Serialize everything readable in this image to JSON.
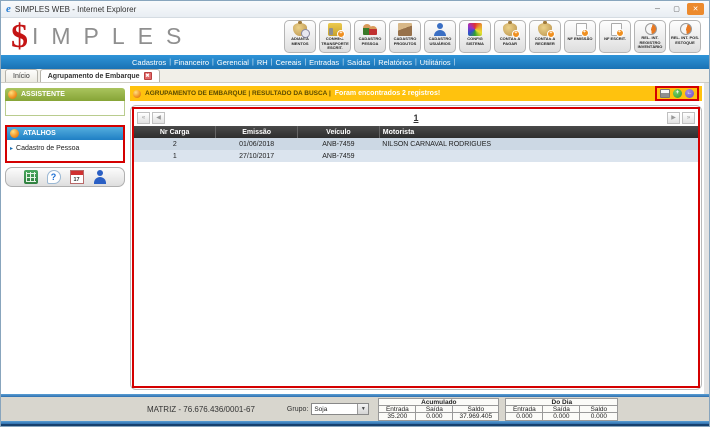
{
  "window": {
    "title": "SIMPLES WEB - Internet Explorer",
    "minimize": "─",
    "maximize": "▢",
    "close": "✕"
  },
  "brand": {
    "dollar": "$",
    "name": "IMPLES"
  },
  "menu": {
    "separator": "|",
    "items": [
      "Cadastros",
      "Financeiro",
      "Gerencial",
      "RH",
      "Cereais",
      "Entradas",
      "Saídas",
      "Relatórios",
      "Utilitários"
    ]
  },
  "tabs": {
    "home": "Início",
    "active": "Agrupamento de Embarque",
    "close": "✖"
  },
  "quickbar": [
    {
      "label": "ADIANTA MENTOS"
    },
    {
      "label": "CONHEC. TRANSPORTE ESCRIT."
    },
    {
      "label": "CADASTRO PESSOA"
    },
    {
      "label": "CADASTRO PRODUTOS"
    },
    {
      "label": "CADASTRO USUÁRIOS"
    },
    {
      "label": "CONFIG SISTEMA"
    },
    {
      "label": "CONTAS A PAGAR"
    },
    {
      "label": "CONTAS A RECEBER"
    },
    {
      "label": "NF EMISSÃO"
    },
    {
      "label": "NF ESCRIT."
    },
    {
      "label": "REL. INT. REGISTRO INVENTÁRIO"
    },
    {
      "label": "REL. INT. POS. ESTOQUE"
    }
  ],
  "sidebar": {
    "assistente": "ASSISTENTE",
    "atalhos": "ATALHOS",
    "shortcut_arrow": "▸",
    "shortcut": "Cadastro de Pessoa",
    "help_mark": "?",
    "calendar_day": "17"
  },
  "main": {
    "banner_title": "AGRUPAMENTO DE EMBARQUE | RESULTADO DA BUSCA |",
    "banner_message": "Foram encontrados 2 registros!",
    "actions": {
      "plus": "+",
      "back": "←"
    },
    "pagination": {
      "first": "«",
      "prev": "◀",
      "page": "1",
      "next": "▶",
      "last": "»"
    },
    "table": {
      "columns": [
        "Nr Carga",
        "Emissão",
        "Veículo",
        "Motorista"
      ],
      "rows": [
        [
          "2",
          "01/06/2018",
          "ANB-7459",
          "NILSON CARNAVAL RODRIGUES"
        ],
        [
          "1",
          "27/10/2017",
          "ANB-7459",
          ""
        ]
      ]
    }
  },
  "statusbar": {
    "company": "MATRIZ - 76.676.436/0001-67",
    "grupo_label": "Grupo:",
    "grupo_value": "Soja",
    "dropdown_arrow": "▼",
    "cols": [
      "Entrada",
      "Saída",
      "Saldo"
    ],
    "acumulado_title": "Acumulado",
    "acumulado_values": [
      "35.200",
      "0.000",
      "37.969.405"
    ],
    "dodia_title": "Do Dia",
    "dodia_values": [
      "0.000",
      "0.000",
      "0.000"
    ]
  },
  "colors": {
    "menu_blue": "#1d7cc2",
    "banner_orange": "#ffc20e",
    "assistente_green": "#94b23c",
    "atalhos_blue": "#2a8fd0",
    "annotation_red": "#d40000",
    "table_header_dark": "#3a3a3a",
    "row_blue": "#ccd8e4"
  }
}
